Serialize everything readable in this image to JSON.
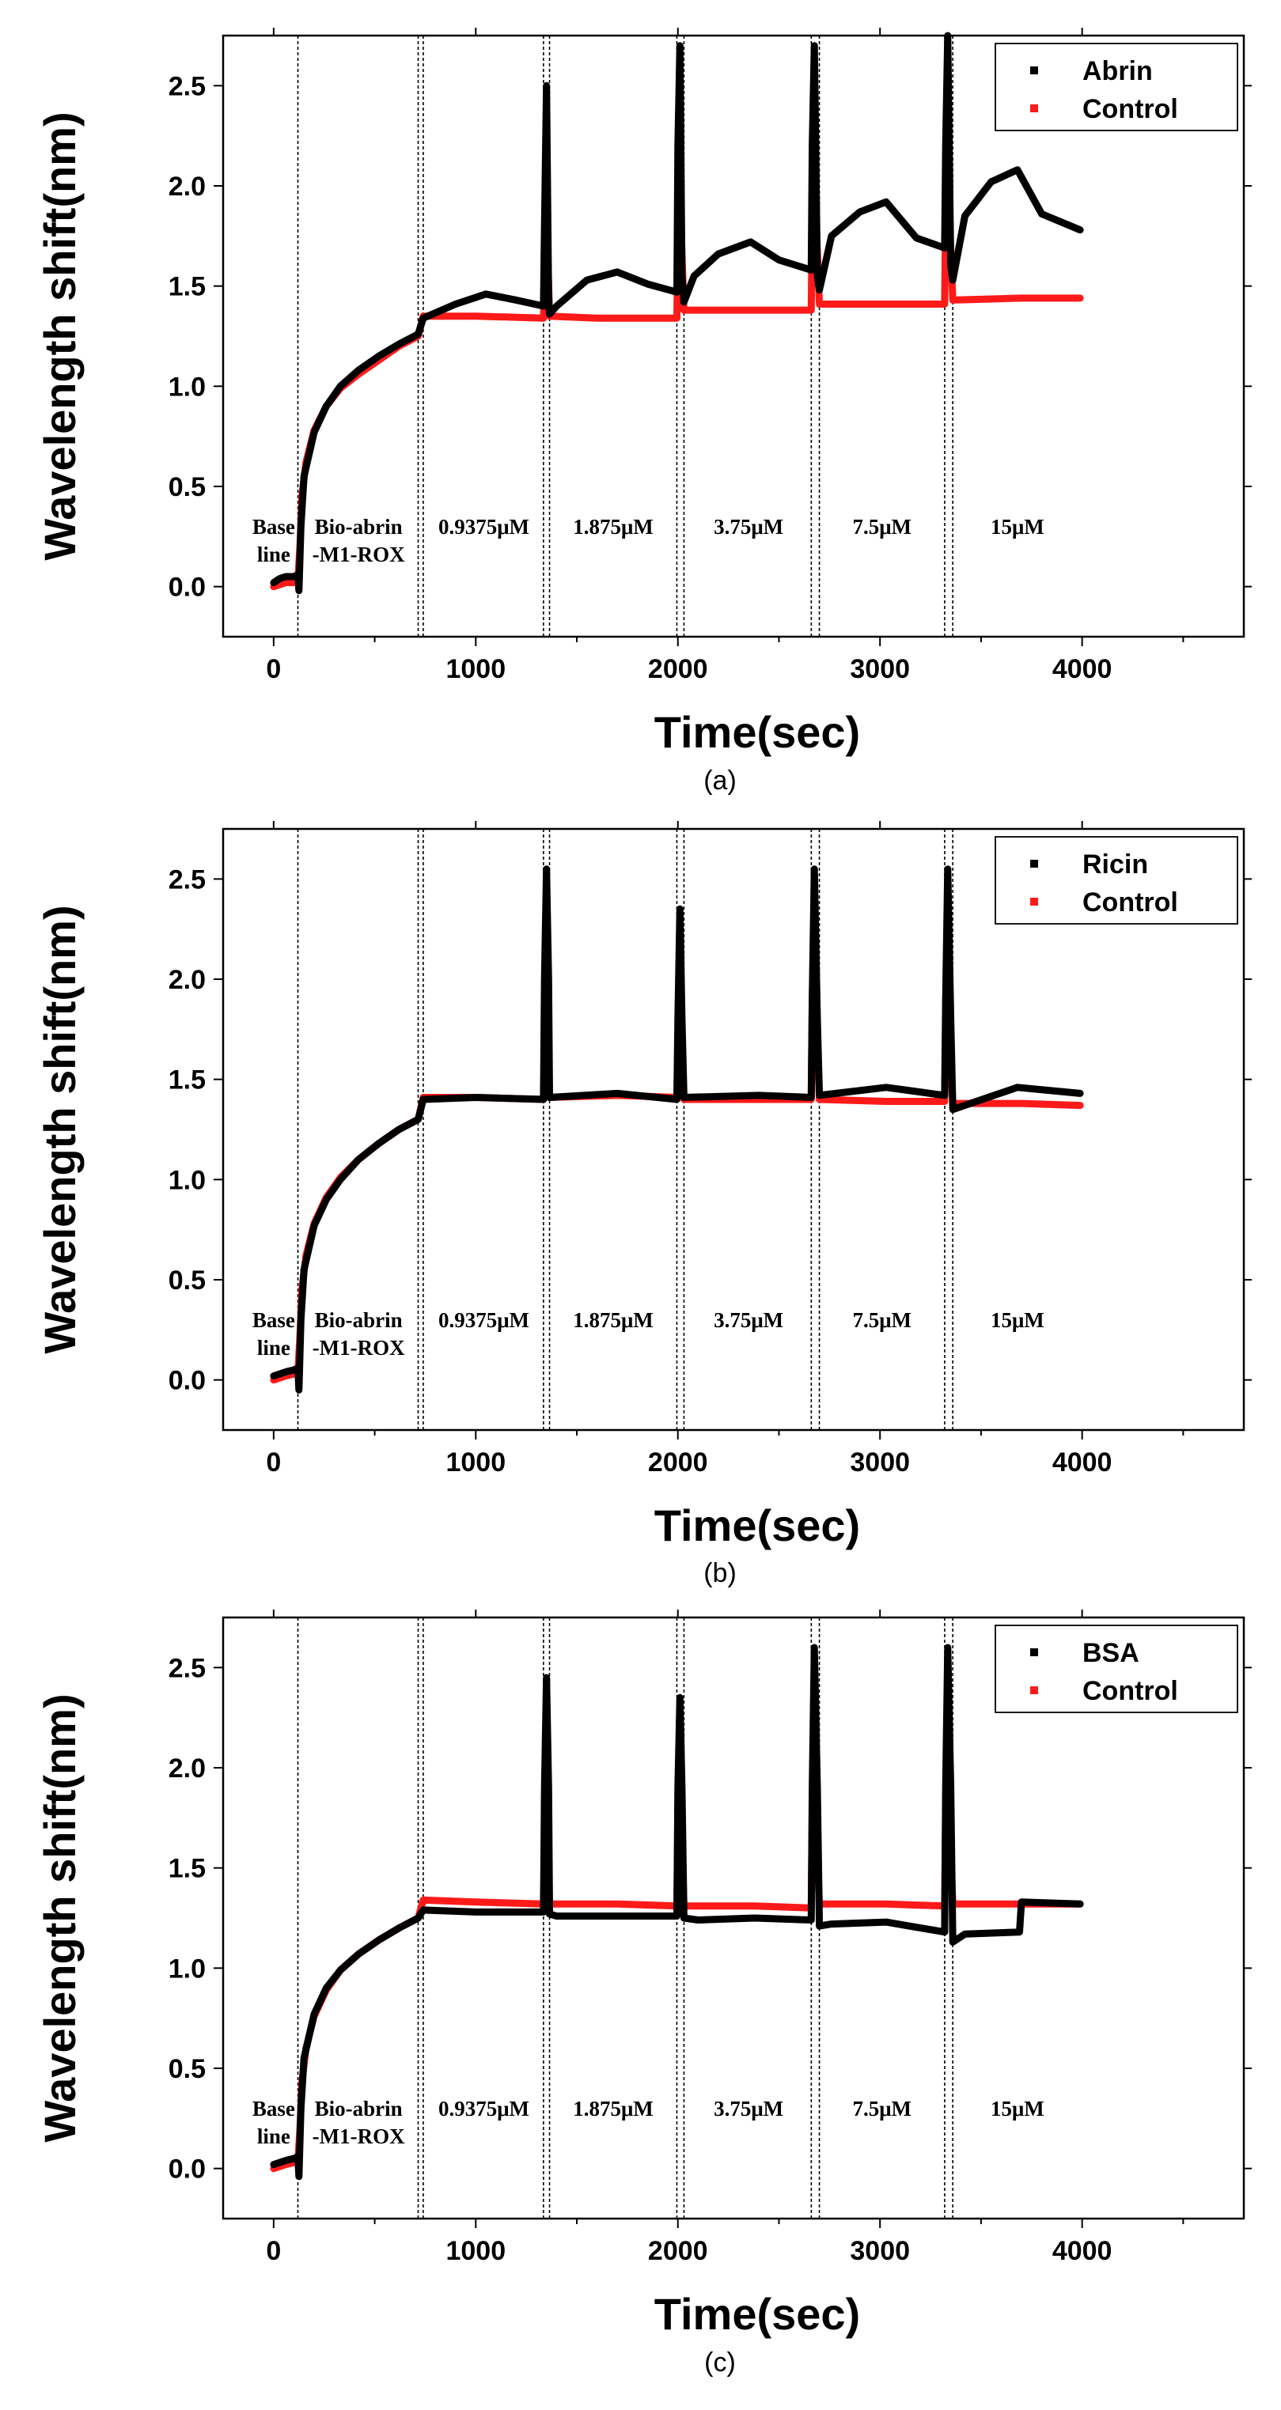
{
  "colors": {
    "sample": "#000000",
    "control": "#ff1a1a"
  },
  "chart_data": [
    {
      "type": "scatter",
      "panel": "(a)",
      "xlabel": "Time(sec)",
      "ylabel": "Wavelength shift(nm)",
      "xlim": [
        -250,
        4800
      ],
      "ylim": [
        -0.25,
        2.75
      ],
      "xticks": [
        0,
        1000,
        2000,
        3000,
        4000
      ],
      "yticks": [
        0.0,
        0.5,
        1.0,
        1.5,
        2.0,
        2.5
      ],
      "ytick_labels": [
        "0.0",
        "0.5",
        "1.0",
        "1.5",
        "2.0",
        "2.5"
      ],
      "legend": [
        "Abrin",
        "Control"
      ],
      "legend_position": "top-right",
      "dividers": [
        120,
        715,
        740,
        1335,
        1365,
        1995,
        2030,
        2660,
        2700,
        3320,
        3360
      ],
      "regions": [
        {
          "x": 0,
          "lines": [
            "Base",
            "line"
          ]
        },
        {
          "x": 420,
          "lines": [
            "Bio-abrin",
            "-M1-ROX"
          ]
        },
        {
          "x": 1040,
          "lines": [
            "0.9375μM"
          ]
        },
        {
          "x": 1680,
          "lines": [
            "1.875μM"
          ]
        },
        {
          "x": 2350,
          "lines": [
            "3.75μM"
          ]
        },
        {
          "x": 3010,
          "lines": [
            "7.5μM"
          ]
        },
        {
          "x": 3680,
          "lines": [
            "15μM"
          ]
        }
      ],
      "series": [
        {
          "name": "Abrin",
          "x": [
            0,
            30,
            60,
            100,
            120,
            125,
            135,
            150,
            200,
            260,
            330,
            420,
            520,
            620,
            715,
            740,
            900,
            1050,
            1200,
            1335,
            1340,
            1350,
            1360,
            1365,
            1400,
            1550,
            1700,
            1850,
            1995,
            2000,
            2010,
            2020,
            2030,
            2080,
            2200,
            2360,
            2500,
            2660,
            2665,
            2675,
            2690,
            2700,
            2760,
            2900,
            3030,
            3180,
            3320,
            3325,
            3335,
            3350,
            3360,
            3420,
            3550,
            3680,
            3800,
            3990
          ],
          "y": [
            0.02,
            0.04,
            0.05,
            0.05,
            0.06,
            -0.02,
            0.3,
            0.55,
            0.77,
            0.9,
            1.0,
            1.08,
            1.15,
            1.21,
            1.26,
            1.34,
            1.41,
            1.46,
            1.43,
            1.4,
            1.8,
            2.5,
            1.45,
            1.36,
            1.4,
            1.53,
            1.57,
            1.51,
            1.47,
            2.2,
            2.7,
            1.55,
            1.42,
            1.55,
            1.66,
            1.72,
            1.63,
            1.58,
            2.2,
            2.7,
            1.55,
            1.48,
            1.75,
            1.87,
            1.92,
            1.74,
            1.69,
            2.2,
            2.75,
            1.6,
            1.53,
            1.85,
            2.02,
            2.08,
            1.86,
            1.78
          ]
        },
        {
          "name": "Control",
          "x": [
            0,
            60,
            100,
            120,
            130,
            140,
            160,
            200,
            260,
            330,
            420,
            520,
            620,
            715,
            740,
            1000,
            1335,
            1345,
            1350,
            1355,
            1365,
            1600,
            1995,
            2000,
            2010,
            2015,
            2030,
            2300,
            2660,
            2665,
            2675,
            2685,
            2700,
            3000,
            3320,
            3325,
            3335,
            3345,
            3360,
            3700,
            3990
          ],
          "y": [
            0.0,
            0.02,
            0.02,
            0.03,
            0.2,
            0.45,
            0.62,
            0.78,
            0.9,
            0.99,
            1.06,
            1.13,
            1.2,
            1.25,
            1.35,
            1.35,
            1.34,
            1.7,
            2.4,
            1.7,
            1.35,
            1.34,
            1.34,
            1.8,
            2.4,
            1.8,
            1.38,
            1.38,
            1.38,
            1.9,
            2.4,
            1.8,
            1.41,
            1.41,
            1.41,
            1.9,
            2.45,
            1.8,
            1.43,
            1.44,
            1.44
          ]
        }
      ]
    },
    {
      "type": "scatter",
      "panel": "(b)",
      "xlabel": "Time(sec)",
      "ylabel": "Wavelength shift(nm)",
      "xlim": [
        -250,
        4800
      ],
      "ylim": [
        -0.25,
        2.75
      ],
      "xticks": [
        0,
        1000,
        2000,
        3000,
        4000
      ],
      "yticks": [
        0.0,
        0.5,
        1.0,
        1.5,
        2.0,
        2.5
      ],
      "ytick_labels": [
        "0.0",
        "0.5",
        "1.0",
        "1.5",
        "2.0",
        "2.5"
      ],
      "legend": [
        "Ricin",
        "Control"
      ],
      "legend_position": "top-right",
      "dividers": [
        120,
        715,
        740,
        1335,
        1365,
        1995,
        2030,
        2660,
        2700,
        3320,
        3360
      ],
      "regions": [
        {
          "x": 0,
          "lines": [
            "Base",
            "line"
          ]
        },
        {
          "x": 420,
          "lines": [
            "Bio-abrin",
            "-M1-ROX"
          ]
        },
        {
          "x": 1040,
          "lines": [
            "0.9375μM"
          ]
        },
        {
          "x": 1680,
          "lines": [
            "1.875μM"
          ]
        },
        {
          "x": 2350,
          "lines": [
            "3.75μM"
          ]
        },
        {
          "x": 3010,
          "lines": [
            "7.5μM"
          ]
        },
        {
          "x": 3680,
          "lines": [
            "15μM"
          ]
        }
      ],
      "series": [
        {
          "name": "Ricin",
          "x": [
            0,
            60,
            100,
            120,
            125,
            135,
            150,
            200,
            260,
            330,
            420,
            520,
            620,
            715,
            740,
            1000,
            1335,
            1340,
            1350,
            1360,
            1365,
            1700,
            1995,
            2000,
            2010,
            2020,
            2030,
            2400,
            2660,
            2665,
            2675,
            2690,
            2700,
            3030,
            3320,
            3325,
            3335,
            3350,
            3360,
            3680,
            3990
          ],
          "y": [
            0.02,
            0.04,
            0.05,
            0.06,
            -0.05,
            0.3,
            0.55,
            0.77,
            0.9,
            1.0,
            1.1,
            1.18,
            1.25,
            1.3,
            1.4,
            1.41,
            1.4,
            2.0,
            2.55,
            2.0,
            1.41,
            1.43,
            1.4,
            1.8,
            2.35,
            1.8,
            1.41,
            1.42,
            1.41,
            1.9,
            2.55,
            1.8,
            1.42,
            1.46,
            1.42,
            1.9,
            2.55,
            1.8,
            1.35,
            1.46,
            1.43
          ]
        },
        {
          "name": "Control",
          "x": [
            0,
            60,
            100,
            120,
            130,
            140,
            160,
            200,
            260,
            330,
            420,
            520,
            620,
            715,
            740,
            1000,
            1335,
            1345,
            1350,
            1355,
            1365,
            1700,
            1995,
            2000,
            2010,
            2015,
            2030,
            2400,
            2660,
            2665,
            2675,
            2685,
            2700,
            3030,
            3320,
            3325,
            3335,
            3345,
            3360,
            3700,
            3990
          ],
          "y": [
            0.0,
            0.02,
            0.03,
            0.03,
            0.22,
            0.45,
            0.62,
            0.78,
            0.91,
            1.01,
            1.1,
            1.18,
            1.25,
            1.3,
            1.41,
            1.41,
            1.4,
            1.9,
            2.45,
            1.9,
            1.41,
            1.42,
            1.41,
            1.7,
            2.2,
            1.7,
            1.4,
            1.4,
            1.4,
            1.9,
            2.4,
            1.8,
            1.4,
            1.39,
            1.39,
            1.7,
            2.3,
            1.7,
            1.38,
            1.38,
            1.37
          ]
        }
      ]
    },
    {
      "type": "scatter",
      "panel": "(c)",
      "xlabel": "Time(sec)",
      "ylabel": "Wavelength shift(nm)",
      "xlim": [
        -250,
        4800
      ],
      "ylim": [
        -0.25,
        2.75
      ],
      "xticks": [
        0,
        1000,
        2000,
        3000,
        4000
      ],
      "yticks": [
        0.0,
        0.5,
        1.0,
        1.5,
        2.0,
        2.5
      ],
      "ytick_labels": [
        "0.0",
        "0.5",
        "1.0",
        "1.5",
        "2.0",
        "2.5"
      ],
      "legend": [
        "BSA",
        "Control"
      ],
      "legend_position": "top-right",
      "dividers": [
        120,
        715,
        740,
        1335,
        1365,
        1995,
        2030,
        2660,
        2700,
        3320,
        3360
      ],
      "regions": [
        {
          "x": 0,
          "lines": [
            "Base",
            "line"
          ]
        },
        {
          "x": 420,
          "lines": [
            "Bio-abrin",
            "-M1-ROX"
          ]
        },
        {
          "x": 1040,
          "lines": [
            "0.9375μM"
          ]
        },
        {
          "x": 1680,
          "lines": [
            "1.875μM"
          ]
        },
        {
          "x": 2350,
          "lines": [
            "3.75μM"
          ]
        },
        {
          "x": 3010,
          "lines": [
            "7.5μM"
          ]
        },
        {
          "x": 3680,
          "lines": [
            "15μM"
          ]
        }
      ],
      "series": [
        {
          "name": "BSA",
          "x": [
            0,
            60,
            100,
            120,
            125,
            135,
            150,
            200,
            260,
            330,
            420,
            520,
            620,
            715,
            740,
            1000,
            1335,
            1340,
            1350,
            1360,
            1365,
            1400,
            1700,
            1995,
            2000,
            2010,
            2020,
            2030,
            2100,
            2380,
            2660,
            2665,
            2675,
            2690,
            2700,
            2760,
            3030,
            3320,
            3325,
            3335,
            3350,
            3360,
            3420,
            3690,
            3700,
            3990
          ],
          "y": [
            0.02,
            0.04,
            0.05,
            0.06,
            -0.04,
            0.3,
            0.55,
            0.77,
            0.9,
            0.99,
            1.07,
            1.14,
            1.2,
            1.25,
            1.29,
            1.28,
            1.28,
            1.9,
            2.45,
            1.9,
            1.27,
            1.26,
            1.26,
            1.26,
            1.9,
            2.35,
            1.9,
            1.25,
            1.24,
            1.25,
            1.24,
            1.9,
            2.6,
            1.9,
            1.21,
            1.22,
            1.23,
            1.18,
            1.9,
            2.6,
            1.9,
            1.13,
            1.17,
            1.18,
            1.33,
            1.32
          ]
        },
        {
          "name": "Control",
          "x": [
            0,
            60,
            100,
            120,
            130,
            140,
            160,
            200,
            260,
            330,
            420,
            520,
            620,
            715,
            740,
            1000,
            1335,
            1345,
            1350,
            1355,
            1365,
            1700,
            1995,
            2000,
            2010,
            2015,
            2030,
            2380,
            2660,
            2665,
            2675,
            2685,
            2700,
            3030,
            3320,
            3325,
            3335,
            3345,
            3360,
            3700,
            3990
          ],
          "y": [
            0.0,
            0.02,
            0.03,
            0.03,
            0.2,
            0.43,
            0.6,
            0.76,
            0.89,
            0.99,
            1.07,
            1.14,
            1.2,
            1.25,
            1.34,
            1.33,
            1.32,
            1.8,
            2.3,
            1.6,
            1.32,
            1.32,
            1.31,
            1.8,
            2.2,
            1.8,
            1.31,
            1.31,
            1.3,
            1.8,
            2.3,
            1.7,
            1.32,
            1.32,
            1.31,
            1.8,
            2.3,
            1.7,
            1.32,
            1.32,
            1.32
          ]
        }
      ]
    }
  ]
}
